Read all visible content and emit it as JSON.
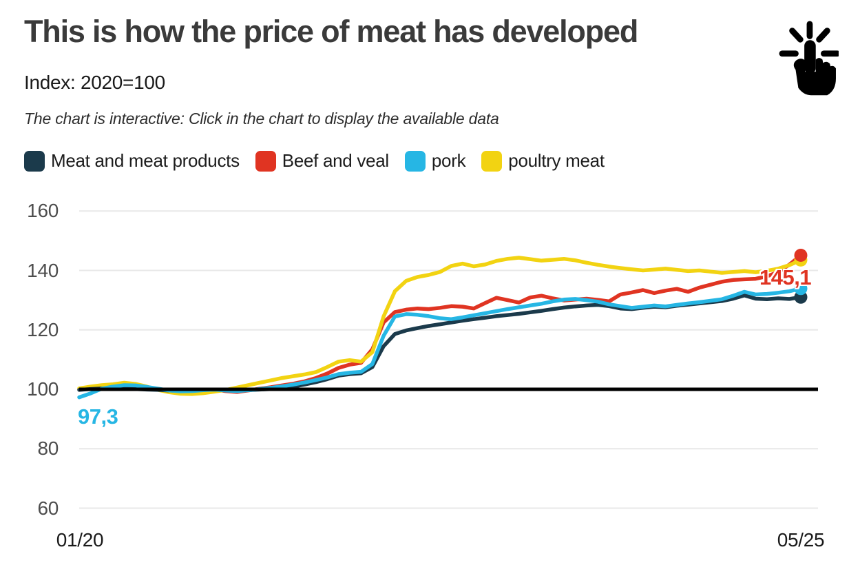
{
  "header": {
    "title": "This is how the price of meat has developed",
    "subtitle": "Index: 2020=100",
    "note": "The chart is interactive: Click in the chart to display the available data"
  },
  "legend": [
    {
      "key": "meat",
      "label": "Meat and meat products",
      "color": "#1b3a4b"
    },
    {
      "key": "beef",
      "label": "Beef and veal",
      "color": "#e03422"
    },
    {
      "key": "pork",
      "label": "pork",
      "color": "#26b6e4"
    },
    {
      "key": "poultry",
      "label": "poultry meat",
      "color": "#f2d312"
    }
  ],
  "colors": {
    "title_text": "#3a3a3a",
    "grid": "#e8e8e8",
    "baseline": "#000000",
    "meat": "#1b3a4b",
    "beef": "#e03422",
    "pork": "#26b6e4",
    "poultry": "#f2d312"
  },
  "chart_data": {
    "type": "line",
    "title": "This is how the price of meat has developed",
    "subtitle": "Index: 2020=100",
    "x_unit": "month",
    "x_range": [
      "01/20",
      "05/25"
    ],
    "xticks": [
      "01/20",
      "05/25"
    ],
    "yticks": [
      60,
      80,
      100,
      120,
      140,
      160
    ],
    "ylim": [
      55,
      165
    ],
    "baseline": 100,
    "grid": true,
    "legend_position": "top",
    "draw_order": [
      "beef",
      "poultry",
      "meat",
      "pork"
    ],
    "dot_order": [
      "poultry",
      "meat",
      "pork",
      "beef"
    ],
    "series": [
      {
        "key": "meat",
        "name": "Meat and meat products",
        "color": "#1b3a4b",
        "end_value": 131.0,
        "values": [
          99.8,
          100.1,
          100.3,
          100.4,
          100.3,
          100.1,
          99.9,
          99.8,
          99.6,
          99.5,
          99.6,
          99.8,
          99.9,
          99.7,
          99.6,
          99.7,
          99.9,
          100.1,
          100.4,
          100.9,
          101.6,
          102.4,
          103.4,
          104.6,
          105.1,
          105.4,
          107.5,
          114.5,
          118.6,
          119.8,
          120.6,
          121.3,
          121.9,
          122.5,
          123.1,
          123.6,
          124.1,
          124.6,
          125.0,
          125.4,
          125.9,
          126.4,
          127.0,
          127.5,
          127.9,
          128.2,
          128.4,
          128.0,
          127.2,
          127.0,
          127.4,
          127.8,
          127.6,
          128.1,
          128.5,
          128.9,
          129.3,
          129.7,
          130.5,
          131.6,
          130.5,
          130.3,
          130.6,
          130.4,
          131.0
        ]
      },
      {
        "key": "beef",
        "name": "Beef and veal",
        "color": "#e03422",
        "end_value": 145.1,
        "values": [
          100.0,
          100.4,
          100.7,
          101.2,
          101.6,
          101.0,
          100.4,
          100.0,
          99.6,
          99.2,
          98.9,
          99.4,
          99.9,
          99.4,
          99.1,
          99.6,
          100.2,
          100.7,
          101.3,
          101.9,
          102.7,
          103.8,
          105.3,
          107.2,
          108.3,
          108.9,
          113.5,
          122.5,
          126.0,
          126.8,
          127.2,
          127.0,
          127.4,
          128.0,
          127.8,
          127.2,
          129.0,
          130.8,
          130.0,
          129.2,
          130.9,
          131.5,
          130.6,
          129.9,
          130.2,
          130.5,
          130.1,
          129.6,
          131.9,
          132.6,
          133.4,
          132.4,
          133.2,
          133.8,
          132.8,
          134.2,
          135.2,
          136.2,
          136.8,
          137.0,
          137.2,
          138.0,
          139.5,
          142.0,
          145.1
        ]
      },
      {
        "key": "pork",
        "name": "pork",
        "color": "#26b6e4",
        "start_value": 97.3,
        "end_value": 133.9,
        "values": [
          97.3,
          98.6,
          100.2,
          100.9,
          101.4,
          101.3,
          100.8,
          100.2,
          99.6,
          99.3,
          99.4,
          99.7,
          99.9,
          99.6,
          99.4,
          99.7,
          100.1,
          100.5,
          101.0,
          101.6,
          102.3,
          103.1,
          104.0,
          105.1,
          105.6,
          105.9,
          108.5,
          118.0,
          124.5,
          125.3,
          125.1,
          124.6,
          123.9,
          123.6,
          124.2,
          124.9,
          125.6,
          126.3,
          127.0,
          127.6,
          128.2,
          128.8,
          129.6,
          130.2,
          130.4,
          130.0,
          129.5,
          128.6,
          128.0,
          127.4,
          127.8,
          128.2,
          127.9,
          128.4,
          128.9,
          129.3,
          129.8,
          130.3,
          131.5,
          132.8,
          131.9,
          132.1,
          132.5,
          133.0,
          133.9
        ]
      },
      {
        "key": "poultry",
        "name": "poultry meat",
        "color": "#f2d312",
        "end_value": 143.5,
        "values": [
          100.3,
          100.9,
          101.4,
          101.7,
          102.2,
          101.8,
          100.9,
          99.8,
          99.0,
          98.5,
          98.4,
          98.7,
          99.2,
          99.8,
          100.6,
          101.4,
          102.2,
          103.0,
          103.8,
          104.4,
          105.0,
          105.8,
          107.5,
          109.3,
          109.8,
          109.3,
          112.5,
          124.5,
          133.0,
          136.5,
          137.8,
          138.5,
          139.5,
          141.5,
          142.3,
          141.4,
          142.0,
          143.2,
          143.9,
          144.3,
          143.8,
          143.3,
          143.6,
          143.9,
          143.4,
          142.6,
          141.9,
          141.3,
          140.8,
          140.4,
          140.0,
          140.3,
          140.6,
          140.2,
          139.8,
          140.0,
          139.6,
          139.2,
          139.5,
          139.8,
          139.4,
          139.9,
          140.6,
          141.8,
          143.5
        ]
      }
    ],
    "annotations": [
      {
        "text": "97,3",
        "series": "pork",
        "position": "start",
        "color": "#26b6e4"
      },
      {
        "text": "145,1",
        "series": "beef",
        "position": "end",
        "color": "#e03422"
      }
    ]
  }
}
